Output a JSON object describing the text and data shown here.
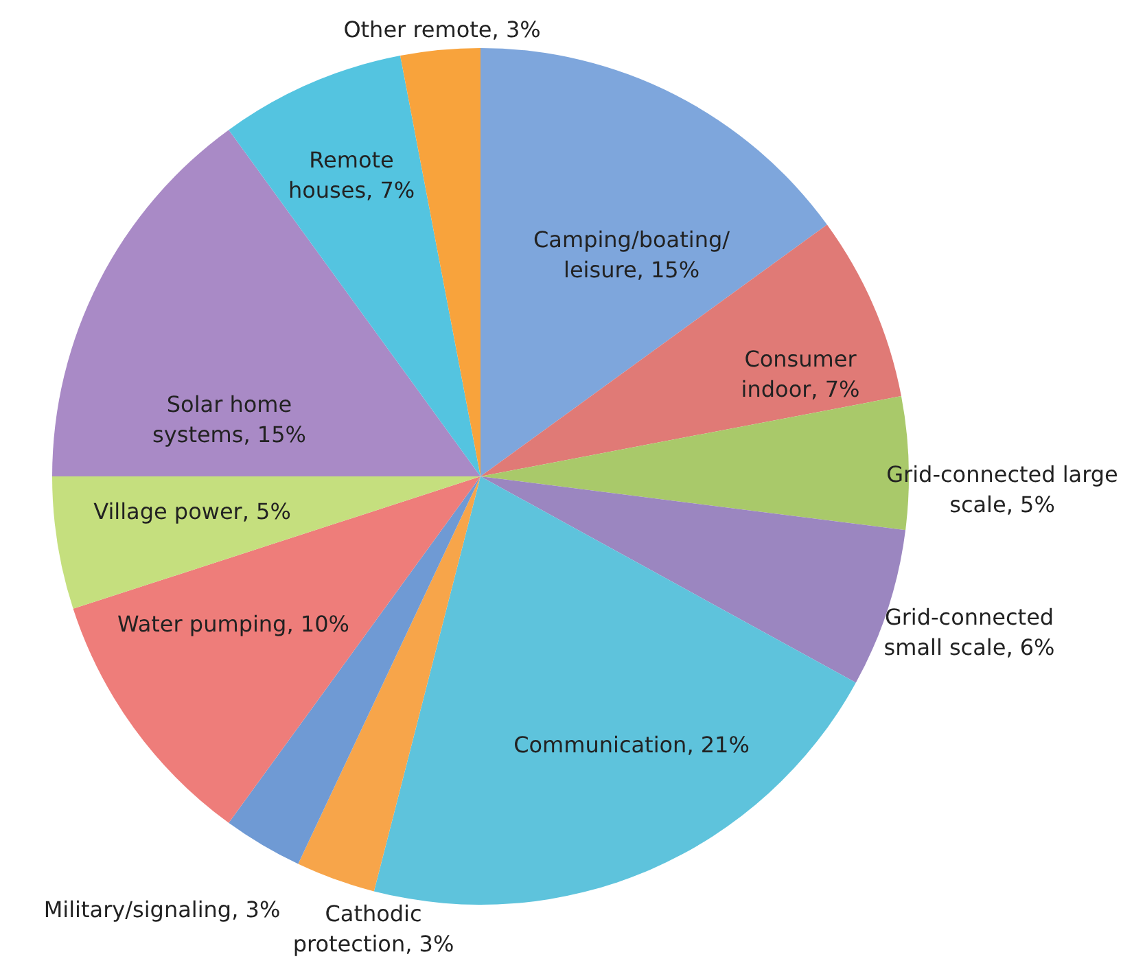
{
  "chart_data": {
    "type": "pie",
    "categories": [
      "Camping/boating/leisure",
      "Consumer indoor",
      "Grid-connected large scale",
      "Grid-connected small scale",
      "Communication",
      "Cathodic protection",
      "Military/signaling",
      "Water pumping",
      "Village power",
      "Solar home systems",
      "Remote houses",
      "Other remote"
    ],
    "values": [
      15,
      7,
      5,
      6,
      21,
      3,
      3,
      10,
      5,
      15,
      7,
      3
    ],
    "value_labels": [
      "15%",
      "7%",
      "5%",
      "6%",
      "21%",
      "3%",
      "3%",
      "10%",
      "5%",
      "15%",
      "7%",
      "3%"
    ],
    "colors": [
      "#7ea6dc",
      "#e07a76",
      "#a9c96a",
      "#9b86c0",
      "#5ec3dc",
      "#f7a54a",
      "#6f9ad4",
      "#ee7d7a",
      "#c5df7e",
      "#a98ac6",
      "#54c4e0",
      "#f8a33c"
    ]
  }
}
